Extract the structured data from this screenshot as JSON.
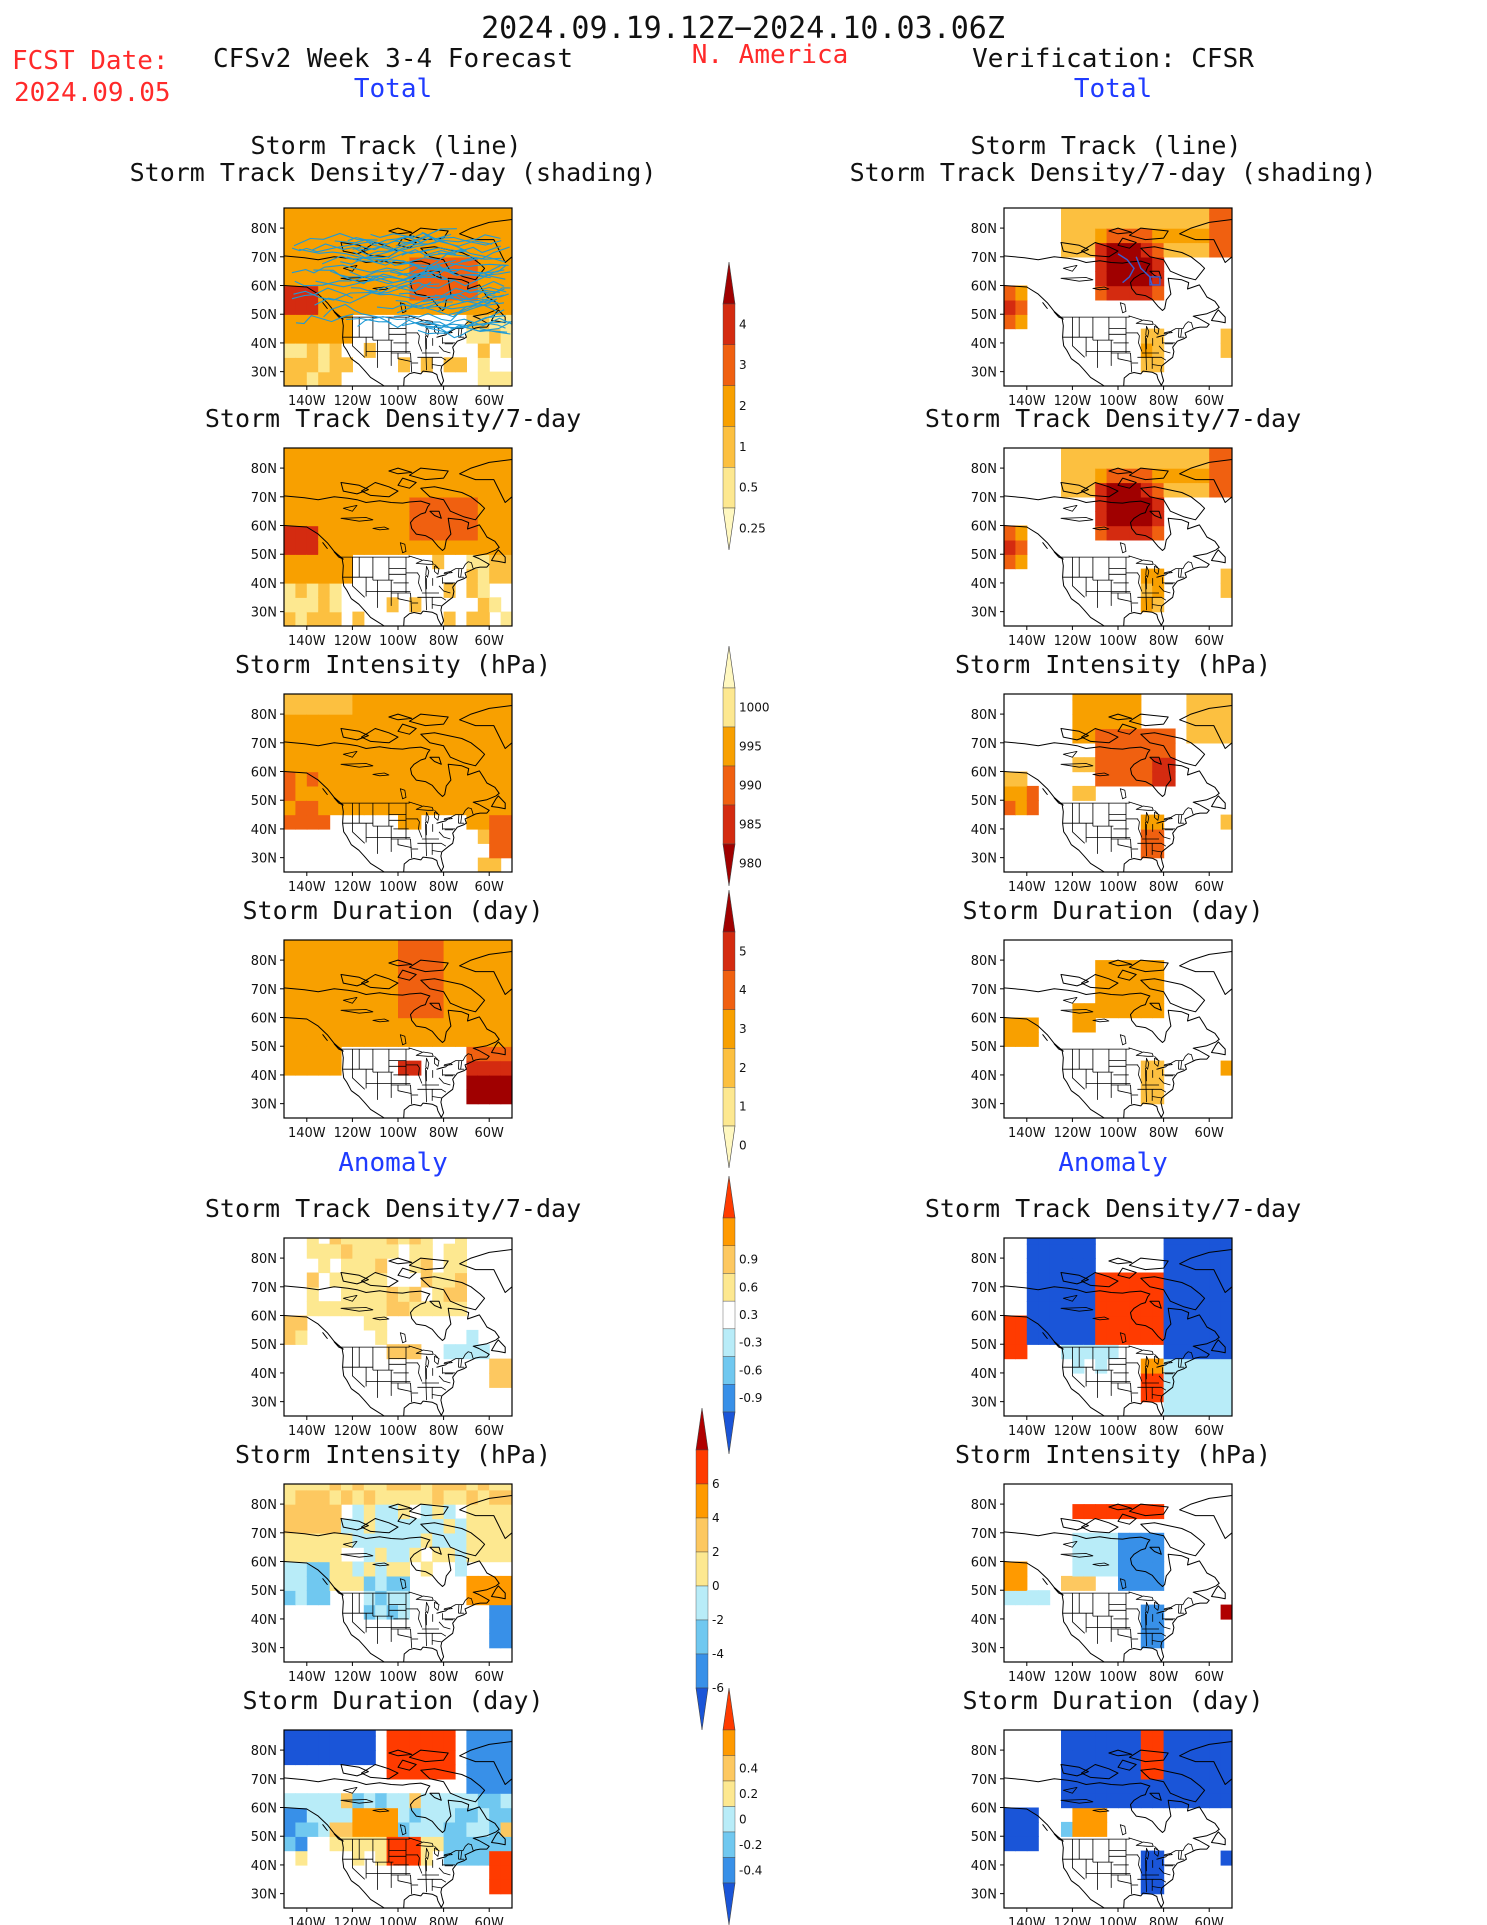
{
  "header": {
    "period": "2024.09.19.12Z−2024.10.03.06Z",
    "fcst_label": "FCST Date:",
    "fcst_date": "2024.09.05",
    "model": "CFSv2 Week 3-4 Forecast",
    "region": "N. America",
    "verification": "Verification: CFSR",
    "left_total": "Total",
    "right_total": "Total"
  },
  "sections": {
    "left_anomaly": "Anomaly",
    "right_anomaly": "Anomaly"
  },
  "panel_titles": {
    "track_line": "Storm Track (line)",
    "track_shading": "Storm Track Density/7-day (shading)",
    "density": "Storm Track Density/7-day",
    "intensity": "Storm Intensity (hPa)",
    "duration": "Storm Duration (day)"
  },
  "axes": {
    "lat_labels": [
      "80N",
      "70N",
      "60N",
      "50N",
      "40N",
      "30N"
    ],
    "lon_labels": [
      "140W",
      "120W",
      "100W",
      "80W",
      "60W"
    ]
  },
  "colorbars": [
    {
      "id": "density_total",
      "labels": [
        "4",
        "3",
        "2",
        "1",
        "0.5",
        "0.25"
      ],
      "colors": [
        "#a00000",
        "#d42b10",
        "#f06010",
        "#f8a000",
        "#fcc040",
        "#fde890",
        "#fff8c0"
      ]
    },
    {
      "id": "intensity_total",
      "labels": [
        "1000",
        "995",
        "990",
        "985",
        "980"
      ],
      "colors": [
        "#fff8c0",
        "#fde890",
        "#f8a000",
        "#f06010",
        "#d42b10",
        "#a00000"
      ]
    },
    {
      "id": "duration_total",
      "labels": [
        "5",
        "4",
        "3",
        "2",
        "1",
        "0"
      ],
      "colors": [
        "#a00000",
        "#d42b10",
        "#f06010",
        "#f8a000",
        "#fcc040",
        "#fde890",
        "#fff8c0"
      ]
    },
    {
      "id": "density_anom",
      "labels": [
        "0.9",
        "0.6",
        "0.3",
        "-0.3",
        "-0.6",
        "-0.9"
      ],
      "colors": [
        "#ff3b00",
        "#ff9a00",
        "#fdc860",
        "#fde890",
        "#ffffff",
        "#b8ecf8",
        "#70c8f0",
        "#3890e8",
        "#1a55d8"
      ]
    },
    {
      "id": "intensity_anom",
      "labels": [
        "6",
        "4",
        "2",
        "0",
        "-2",
        "-4",
        "-6"
      ],
      "colors": [
        "#b00000",
        "#ff3b00",
        "#ff9a00",
        "#fdc860",
        "#fde890",
        "#b8ecf8",
        "#70c8f0",
        "#3890e8",
        "#1a55d8"
      ]
    },
    {
      "id": "duration_anom",
      "labels": [
        "0.4",
        "0.2",
        "0",
        "-0.2",
        "-0.4"
      ],
      "colors": [
        "#ff3b00",
        "#ff9a00",
        "#fdc860",
        "#fde890",
        "#b8ecf8",
        "#70c8f0",
        "#3890e8",
        "#1a55d8"
      ]
    }
  ],
  "panels": [
    {
      "id": "L1",
      "title_keys": [
        "track_line",
        "track_shading"
      ],
      "pattern": "track_fcst",
      "side": "left"
    },
    {
      "id": "R1",
      "title_keys": [
        "track_line",
        "track_shading"
      ],
      "pattern": "track_obs",
      "side": "right"
    },
    {
      "id": "L2",
      "title_keys": [
        "density"
      ],
      "pattern": "density_fcst",
      "side": "left"
    },
    {
      "id": "R2",
      "title_keys": [
        "density"
      ],
      "pattern": "density_obs",
      "side": "right"
    },
    {
      "id": "L3",
      "title_keys": [
        "intensity"
      ],
      "pattern": "intensity_fcst",
      "side": "left"
    },
    {
      "id": "R3",
      "title_keys": [
        "intensity"
      ],
      "pattern": "intensity_obs",
      "side": "right"
    },
    {
      "id": "L4",
      "title_keys": [
        "duration"
      ],
      "pattern": "duration_fcst",
      "side": "left"
    },
    {
      "id": "R4",
      "title_keys": [
        "duration"
      ],
      "pattern": "duration_obs",
      "side": "right"
    },
    {
      "id": "L5",
      "title_keys": [
        "density"
      ],
      "pattern": "dens_anom_fcst",
      "side": "left"
    },
    {
      "id": "R5",
      "title_keys": [
        "density"
      ],
      "pattern": "dens_anom_obs",
      "side": "right"
    },
    {
      "id": "L6",
      "title_keys": [
        "intensity"
      ],
      "pattern": "int_anom_fcst",
      "side": "left"
    },
    {
      "id": "R6",
      "title_keys": [
        "intensity"
      ],
      "pattern": "int_anom_obs",
      "side": "right"
    },
    {
      "id": "L7",
      "title_keys": [
        "duration"
      ],
      "pattern": "dur_anom_fcst",
      "side": "left"
    },
    {
      "id": "R7",
      "title_keys": [
        "duration"
      ],
      "pattern": "dur_anom_obs",
      "side": "right"
    }
  ],
  "palette": {
    "title_black": "#111111",
    "label_red": "#ff2a2a",
    "label_blue": "#1f3bff",
    "track_line": "#1e9ad6",
    "track_line_obs": "#3a5fd0"
  }
}
